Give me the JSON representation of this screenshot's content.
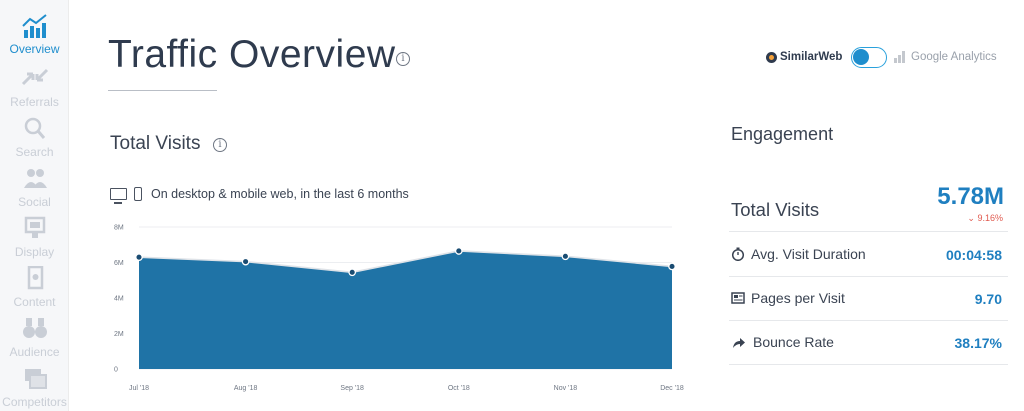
{
  "sidebar": {
    "items": [
      {
        "label": "Overview",
        "icon": "bar-chart-trend-icon",
        "active": true
      },
      {
        "label": "Referrals",
        "icon": "arrows-icon",
        "active": false
      },
      {
        "label": "Search",
        "icon": "magnifier-icon",
        "active": false
      },
      {
        "label": "Social",
        "icon": "people-icon",
        "active": false
      },
      {
        "label": "Display",
        "icon": "display-ad-icon",
        "active": false
      },
      {
        "label": "Content",
        "icon": "document-icon",
        "active": false
      },
      {
        "label": "Audience",
        "icon": "binoculars-icon",
        "active": false
      },
      {
        "label": "Competitors",
        "icon": "overlapping-windows-icon",
        "active": false
      }
    ]
  },
  "header": {
    "title": "Traffic Overview",
    "info_glyph": "i",
    "source_similarweb": "SimilarWeb",
    "source_ga": "Google Analytics",
    "toggle_on": true,
    "accent_color": "#1f8ecd"
  },
  "total_visits_section": {
    "title": "Total Visits",
    "info_glyph": "i",
    "device_note": "On desktop & mobile web, in the last 6 months"
  },
  "chart_data": {
    "type": "area",
    "categories": [
      "Jul '18",
      "Aug '18",
      "Sep '18",
      "Oct '18",
      "Nov '18",
      "Dec '18"
    ],
    "series": [
      {
        "values": [
          6.3,
          6.05,
          5.45,
          6.65,
          6.35,
          5.78
        ]
      }
    ],
    "y_ticks": [
      "0",
      "2M",
      "4M",
      "6M",
      "8M"
    ],
    "ylim": [
      0,
      8
    ],
    "unit": "M",
    "grid": true,
    "fill_color": "#1f73a6",
    "title": "",
    "xlabel": "",
    "ylabel": ""
  },
  "engagement": {
    "title": "Engagement",
    "total_visits_label": "Total Visits",
    "total_visits_value": "5.78M",
    "total_visits_change": "9.16%",
    "change_direction_glyph": "⌄",
    "metrics": [
      {
        "label": "Avg. Visit Duration",
        "value": "00:04:58",
        "icon": "stopwatch-icon"
      },
      {
        "label": "Pages per Visit",
        "value": "9.70",
        "icon": "pages-icon"
      },
      {
        "label": "Bounce Rate",
        "value": "38.17%",
        "icon": "bounce-arrow-icon"
      }
    ]
  }
}
